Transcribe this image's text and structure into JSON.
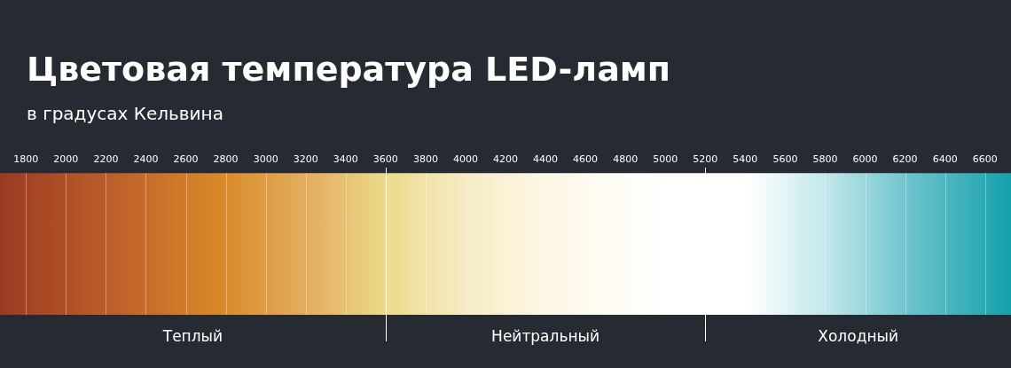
{
  "chart_data": {
    "type": "bar",
    "orientation": "horizontal",
    "title": "Цветовая температура LED-ламп",
    "subtitle": "в градусах Кельвина",
    "categories": [
      null
    ],
    "xlim": [
      1670,
      6730
    ],
    "xticks": [
      1800,
      2000,
      2200,
      2400,
      2600,
      2800,
      3000,
      3200,
      3400,
      3600,
      3800,
      4000,
      4200,
      4400,
      4600,
      4800,
      5000,
      5200,
      5400,
      5600,
      5800,
      6000,
      6200,
      6400,
      6600
    ],
    "grid": "x",
    "series": [
      {
        "name": "Теплый",
        "base": [
          1670
        ],
        "values": [
          1930
        ]
      },
      {
        "name": "Нейтральный",
        "base": [
          3600
        ],
        "values": [
          1600
        ]
      },
      {
        "name": "Холодный",
        "base": [
          5200
        ],
        "values": [
          1530
        ]
      }
    ]
  }
}
